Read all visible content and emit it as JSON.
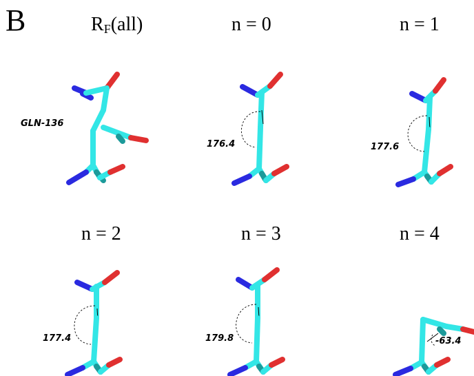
{
  "panel_label": "B",
  "residue_label": "GLN-136",
  "colors": {
    "carbon": "#33e6e6",
    "carbon_dark": "#1fa8a8",
    "oxygen": "#e03030",
    "nitrogen": "#2a2ae0"
  },
  "panels": [
    {
      "title_main": "R",
      "title_sub": "F",
      "title_rest": "(all)",
      "angle": ""
    },
    {
      "title": "n = 0",
      "angle": "176.4"
    },
    {
      "title": "n = 1",
      "angle": "177.6"
    },
    {
      "title": "n = 2",
      "angle": "177.4"
    },
    {
      "title": "n = 3",
      "angle": "179.8"
    },
    {
      "title": "n = 4",
      "angle": "-63.4"
    }
  ]
}
